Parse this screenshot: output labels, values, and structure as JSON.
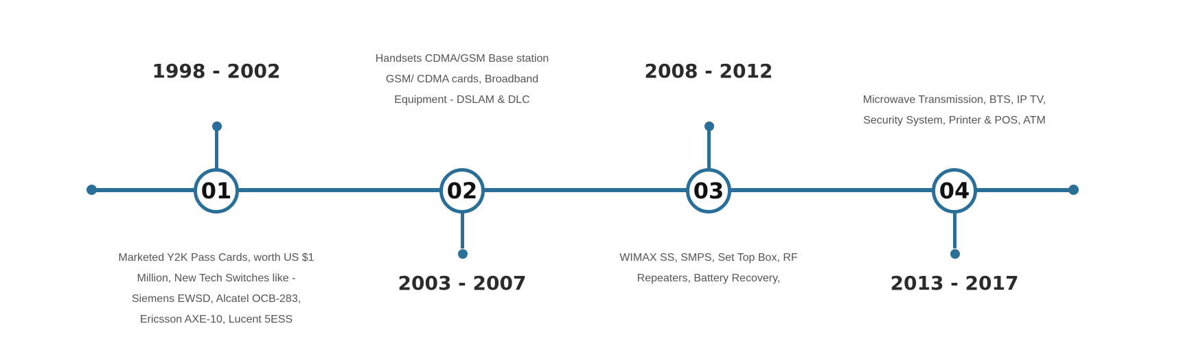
{
  "colors": {
    "accent": "#2a6f97",
    "heading": "#2b2b2b",
    "text": "#555555"
  },
  "milestones": [
    {
      "number": "01",
      "years": "1998 - 2002",
      "description": "Marketed Y2K Pass Cards, worth US $1 Million, New Tech Switches like - Siemens EWSD, Alcatel OCB-283, Ericsson AXE-10, Lucent 5ESS"
    },
    {
      "number": "02",
      "years": "2003 - 2007",
      "description": "Handsets CDMA/GSM Base station GSM/ CDMA cards, Broadband Equipment - DSLAM & DLC"
    },
    {
      "number": "03",
      "years": "2008 - 2012",
      "description": "WIMAX SS, SMPS, Set Top Box, RF Repeaters, Battery Recovery,"
    },
    {
      "number": "04",
      "years": "2013 - 2017",
      "description": "Microwave Transmission, BTS, IP TV, Security System, Printer & POS, ATM"
    }
  ]
}
